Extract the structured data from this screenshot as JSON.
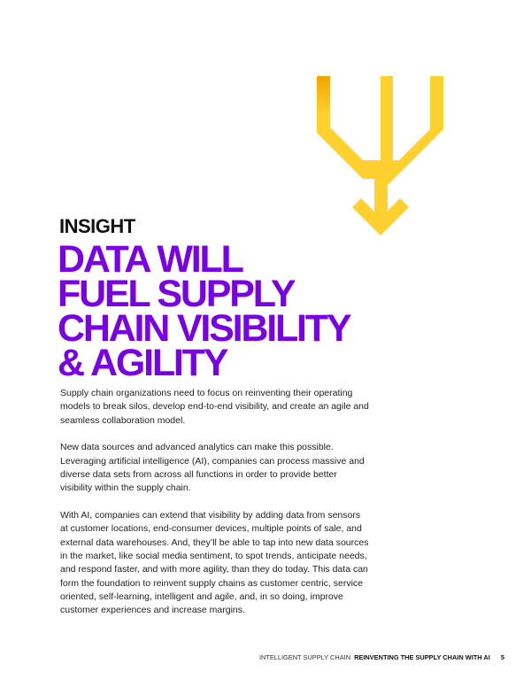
{
  "eyebrow": "INSIGHT",
  "headline": [
    "DATA WILL",
    "FUEL SUPPLY",
    "CHAIN VISIBILITY",
    "& AGILITY"
  ],
  "paragraphs": [
    "Supply chain organizations need to focus on reinventing their operating models to break silos, develop end-to-end visibility, and create an agile and seamless collaboration model.",
    "New data sources and advanced analytics can make this possible. Leveraging artificial intelligence (AI), companies can process massive and diverse data sets from across all functions in order to provide better visibility within the supply chain.",
    "With AI, companies can extend that visibility by adding data from sensors at customer locations, end-consumer devices, multiple points of sale, and external data warehouses. And, they’ll be able to tap into new data sources in the market, like social media sentiment, to spot trends, anticipate needs, and respond faster, and with more agility, than they do today. This data can form the foundation to reinvent supply chains as customer centric, service oriented, self-learning, intelligent and agile, and, in so doing, improve customer experiences and increase margins."
  ],
  "footer": {
    "section": "INTELLIGENT SUPPLY CHAIN",
    "title": "REINVENTING THE SUPPLY CHAIN WITH AI",
    "page_number": "5"
  },
  "colors": {
    "headline": "#7a00e6",
    "graphic_yellow": "#ffd02e",
    "graphic_orange": "#f5a300"
  },
  "icons": {
    "graphic": "converging-arrows-icon"
  }
}
